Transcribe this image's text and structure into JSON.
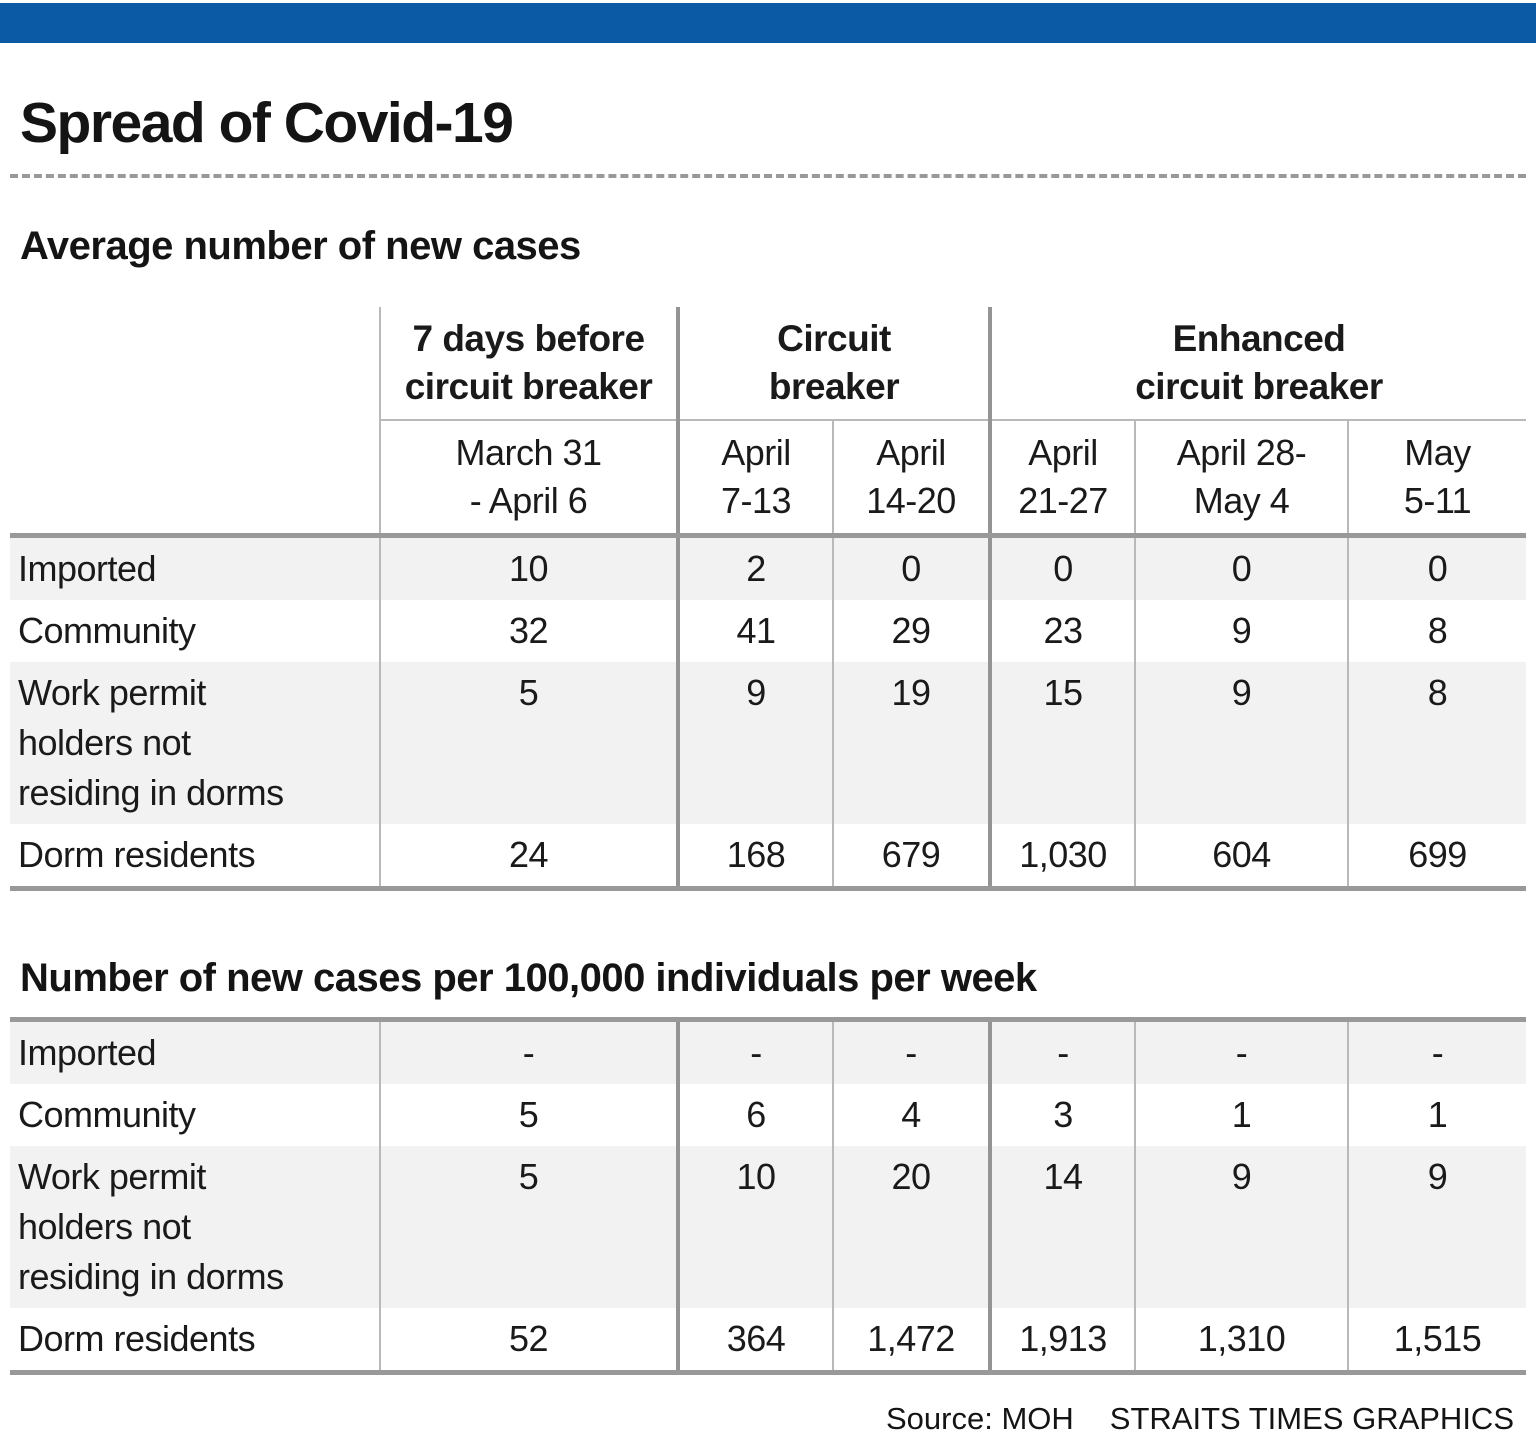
{
  "page": {
    "title": "Spread of Covid-19",
    "source": "Source: MOH",
    "credit": "STRAITS TIMES GRAPHICS",
    "colors": {
      "masthead_blue": "#0b5aa6",
      "row_stripe_gray": "#f2f2f2",
      "rule_gray": "#999999",
      "text_black": "#141414"
    }
  },
  "chart_data": [
    {
      "type": "table",
      "title": "Average number of new cases",
      "column_groups": [
        {
          "label": "7 days before\ncircuit breaker",
          "span": 1
        },
        {
          "label": "Circuit\nbreaker",
          "span": 2
        },
        {
          "label": "Enhanced\ncircuit breaker",
          "span": 3
        }
      ],
      "columns": [
        "March 31\n- April 6",
        "April\n7-13",
        "April\n14-20",
        "April\n21-27",
        "April 28-\nMay 4",
        "May\n5-11"
      ],
      "rows": [
        {
          "label": "Imported",
          "values": [
            "10",
            "2",
            "0",
            "0",
            "0",
            "0"
          ]
        },
        {
          "label": "Community",
          "values": [
            "32",
            "41",
            "29",
            "23",
            "9",
            "8"
          ]
        },
        {
          "label": "Work permit\nholders not\nresiding in dorms",
          "values": [
            "5",
            "9",
            "19",
            "15",
            "9",
            "8"
          ]
        },
        {
          "label": "Dorm residents",
          "values": [
            "24",
            "168",
            "679",
            "1,030",
            "604",
            "699"
          ]
        }
      ],
      "layout": {
        "row_shading": "alternate",
        "thick_dividers_at_group_boundaries": true,
        "grid": "vertical-only"
      }
    },
    {
      "type": "table",
      "title": "Number of new cases per 100,000 individuals per week",
      "rows": [
        {
          "label": "Imported",
          "values": [
            "-",
            "-",
            "-",
            "-",
            "-",
            "-"
          ]
        },
        {
          "label": "Community",
          "values": [
            "5",
            "6",
            "4",
            "3",
            "1",
            "1"
          ]
        },
        {
          "label": "Work permit\nholders not\nresiding in dorms",
          "values": [
            "5",
            "10",
            "20",
            "14",
            "9",
            "9"
          ]
        },
        {
          "label": "Dorm residents",
          "values": [
            "52",
            "364",
            "1,472",
            "1,913",
            "1,310",
            "1,515"
          ]
        }
      ],
      "layout": {
        "row_shading": "alternate",
        "thick_dividers_at_group_boundaries": true,
        "grid": "vertical-only",
        "column_headers_shown": false
      }
    }
  ]
}
